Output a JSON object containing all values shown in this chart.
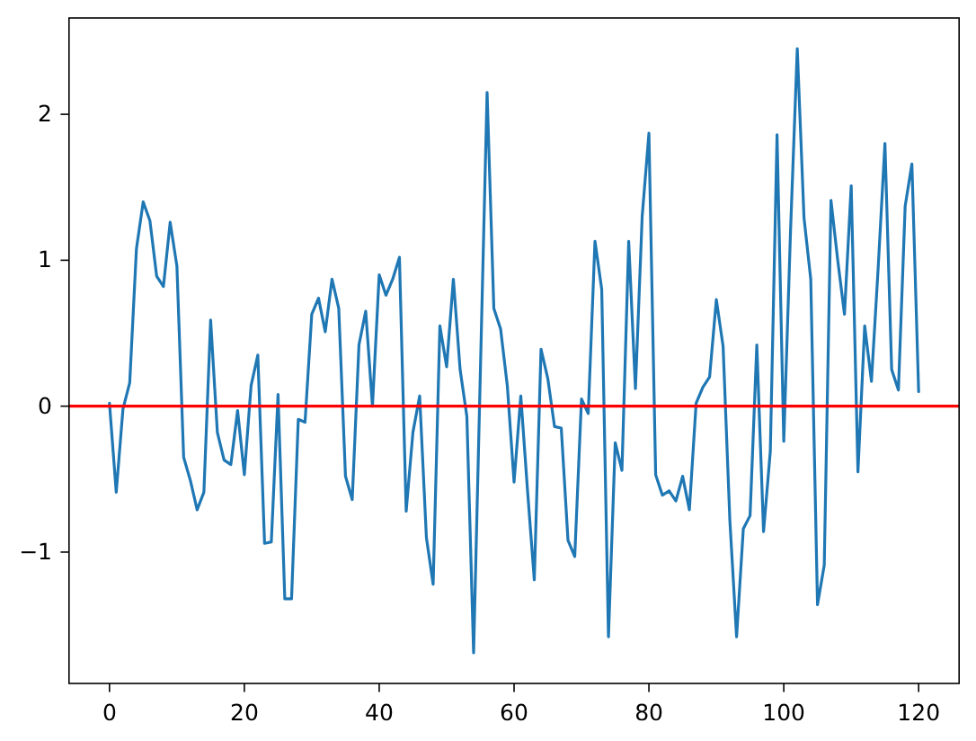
{
  "chart_data": {
    "type": "line",
    "x": [
      0,
      1,
      2,
      3,
      4,
      5,
      6,
      7,
      8,
      9,
      10,
      11,
      12,
      13,
      14,
      15,
      16,
      17,
      18,
      19,
      20,
      21,
      22,
      23,
      24,
      25,
      26,
      27,
      28,
      29,
      30,
      31,
      32,
      33,
      34,
      35,
      36,
      37,
      38,
      39,
      40,
      41,
      42,
      43,
      44,
      45,
      46,
      47,
      48,
      49,
      50,
      51,
      52,
      53,
      54,
      55,
      56,
      57,
      58,
      59,
      60,
      61,
      62,
      63,
      64,
      65,
      66,
      67,
      68,
      69,
      70,
      71,
      72,
      73,
      74,
      75,
      76,
      77,
      78,
      79,
      80,
      81,
      82,
      83,
      84,
      85,
      86,
      87,
      88,
      89,
      90,
      91,
      92,
      93,
      94,
      95,
      96,
      97,
      98,
      99,
      100,
      101,
      102,
      103,
      104,
      105,
      106,
      107,
      108,
      109,
      110,
      111,
      112,
      113,
      114,
      115,
      116,
      117,
      118,
      119,
      120
    ],
    "series": [
      {
        "color": "#1f77b4",
        "values": [
          0.02,
          -0.59,
          -0.02,
          0.16,
          1.08,
          1.4,
          1.27,
          0.89,
          0.82,
          1.26,
          0.96,
          -0.35,
          -0.51,
          -0.71,
          -0.59,
          0.59,
          -0.18,
          -0.37,
          -0.4,
          -0.03,
          -0.47,
          0.14,
          0.35,
          -0.94,
          -0.93,
          0.08,
          -1.32,
          -1.32,
          -0.09,
          -0.11,
          0.63,
          0.74,
          0.51,
          0.87,
          0.67,
          -0.48,
          -0.64,
          0.42,
          0.65,
          0.0,
          0.9,
          0.76,
          0.87,
          1.02,
          -0.72,
          -0.18,
          0.07,
          -0.9,
          -1.22,
          0.55,
          0.27,
          0.87,
          0.25,
          -0.07,
          -1.69,
          0.23,
          2.15,
          0.67,
          0.53,
          0.14,
          -0.52,
          0.07,
          -0.58,
          -1.19,
          0.39,
          0.19,
          -0.14,
          -0.15,
          -0.92,
          -1.03,
          0.05,
          -0.05,
          1.13,
          0.8,
          -1.58,
          -0.25,
          -0.44,
          1.13,
          0.12,
          1.3,
          1.87,
          -0.47,
          -0.61,
          -0.58,
          -0.65,
          -0.48,
          -0.71,
          0.02,
          0.13,
          0.2,
          0.73,
          0.41,
          -0.78,
          -1.58,
          -0.84,
          -0.75,
          0.42,
          -0.86,
          -0.31,
          1.86,
          -0.24,
          1.2,
          2.45,
          1.29,
          0.87,
          -1.36,
          -1.09,
          1.41,
          1.0,
          0.63,
          1.51,
          -0.45,
          0.55,
          0.17,
          0.95,
          1.8,
          0.25,
          0.11,
          1.37,
          1.66,
          0.1
        ]
      }
    ],
    "xlim": [
      -6,
      126
    ],
    "ylim": [
      -1.9,
      2.66
    ],
    "xticks": [
      0,
      20,
      40,
      60,
      80,
      100,
      120
    ],
    "yticks": [
      {
        "value": -1,
        "label": "−1"
      },
      0,
      1,
      2
    ],
    "ref_lines": [
      {
        "axis": "y",
        "value": 0,
        "color": "#ff0000"
      }
    ]
  }
}
